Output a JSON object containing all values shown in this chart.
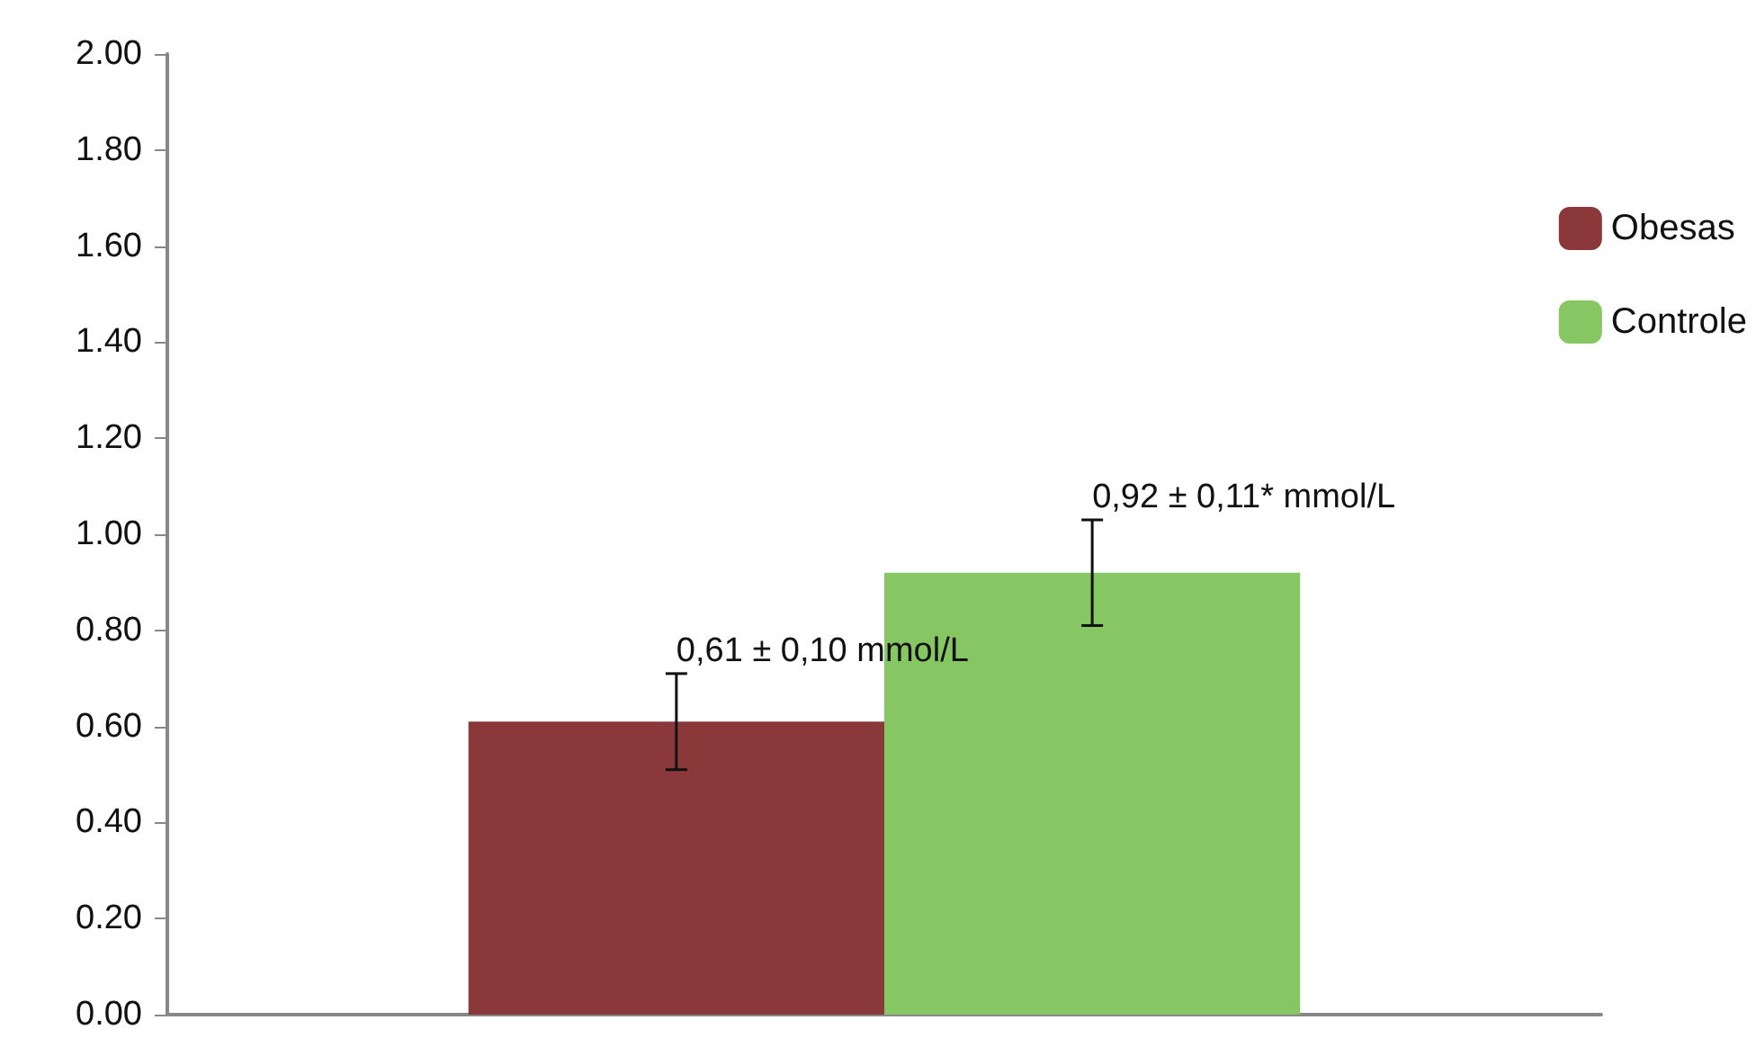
{
  "chart_data": {
    "type": "bar",
    "categories": [
      null
    ],
    "series": [
      {
        "name": "Obesas",
        "color": "#8b383b",
        "values": [
          0.61
        ],
        "errors": [
          0.1
        ],
        "value_labels": [
          "0,61 ± 0,10 mmol/L"
        ]
      },
      {
        "name": "Controle",
        "color": "#86c663",
        "values": [
          0.92
        ],
        "errors": [
          0.11
        ],
        "value_labels": [
          "0,92 ± 0,11* mmol/L"
        ]
      }
    ],
    "ylim": [
      0,
      2
    ],
    "yticks": [
      {
        "value": 0,
        "label": "0.00"
      },
      {
        "value": 0.2,
        "label": "0.20"
      },
      {
        "value": 0.4,
        "label": "0.40"
      },
      {
        "value": 0.6,
        "label": "0.60"
      },
      {
        "value": 0.8,
        "label": "0.80"
      },
      {
        "value": 1,
        "label": "1.00"
      },
      {
        "value": 1.2,
        "label": "1.20"
      },
      {
        "value": 1.4,
        "label": "1.40"
      },
      {
        "value": 1.6,
        "label": "1.60"
      },
      {
        "value": 1.8,
        "label": "1.80"
      },
      {
        "value": 2,
        "label": "2.00"
      }
    ],
    "grid": false,
    "legend": "right"
  }
}
